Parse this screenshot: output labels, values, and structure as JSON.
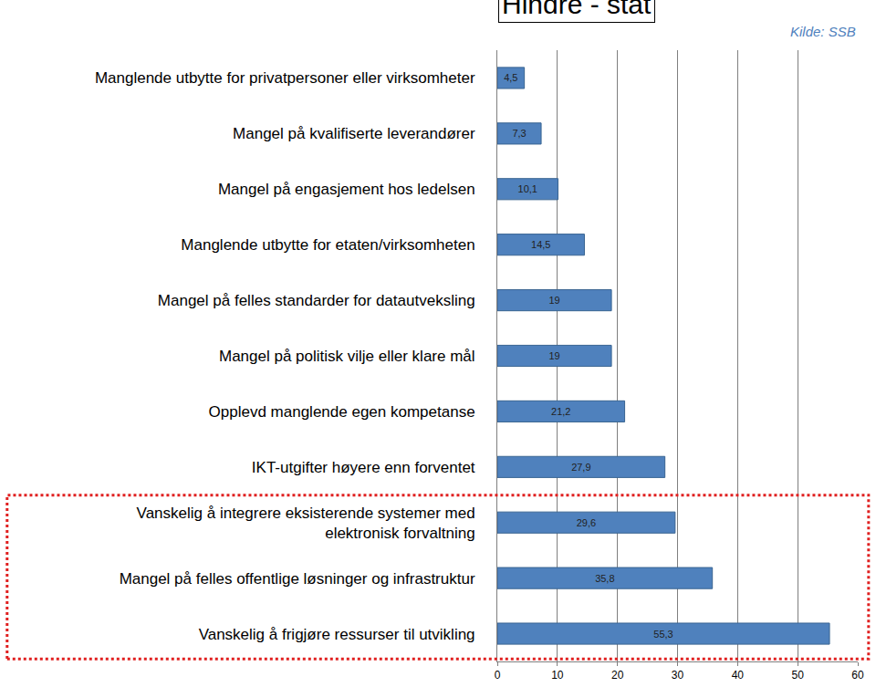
{
  "chart_data": {
    "type": "bar",
    "orientation": "horizontal",
    "title": "Hindre - stat",
    "annotations": [
      "Kilde: SSB"
    ],
    "categories": [
      "Manglende utbytte for privatpersoner eller virksomheter",
      "Mangel på kvalifiserte leverandører",
      "Mangel på engasjement hos ledelsen",
      "Manglende utbytte for etaten/virksomheten",
      "Mangel på felles standarder for datautveksling",
      "Mangel på politisk vilje eller klare mål",
      "Opplevd manglende egen kompetanse",
      "IKT-utgifter høyere enn forventet",
      "Vanskelig å integrere eksisterende systemer med\nelektronisk forvaltning",
      "Mangel på felles offentlige løsninger og infrastruktur",
      "Vanskelig å frigjøre ressurser til utvikling"
    ],
    "values": [
      4.5,
      7.3,
      10.1,
      14.5,
      19,
      19,
      21.2,
      27.9,
      29.6,
      35.8,
      55.3
    ],
    "value_labels": [
      "4,5",
      "7,3",
      "10,1",
      "14,5",
      "19",
      "19",
      "21,2",
      "27,9",
      "29,6",
      "35,8",
      "55,3"
    ],
    "data_labels": true,
    "color": "#4f81bd",
    "xlim": [
      0,
      60
    ],
    "xticks": [
      0,
      10,
      20,
      30,
      40,
      50,
      60
    ],
    "grid": true
  }
}
